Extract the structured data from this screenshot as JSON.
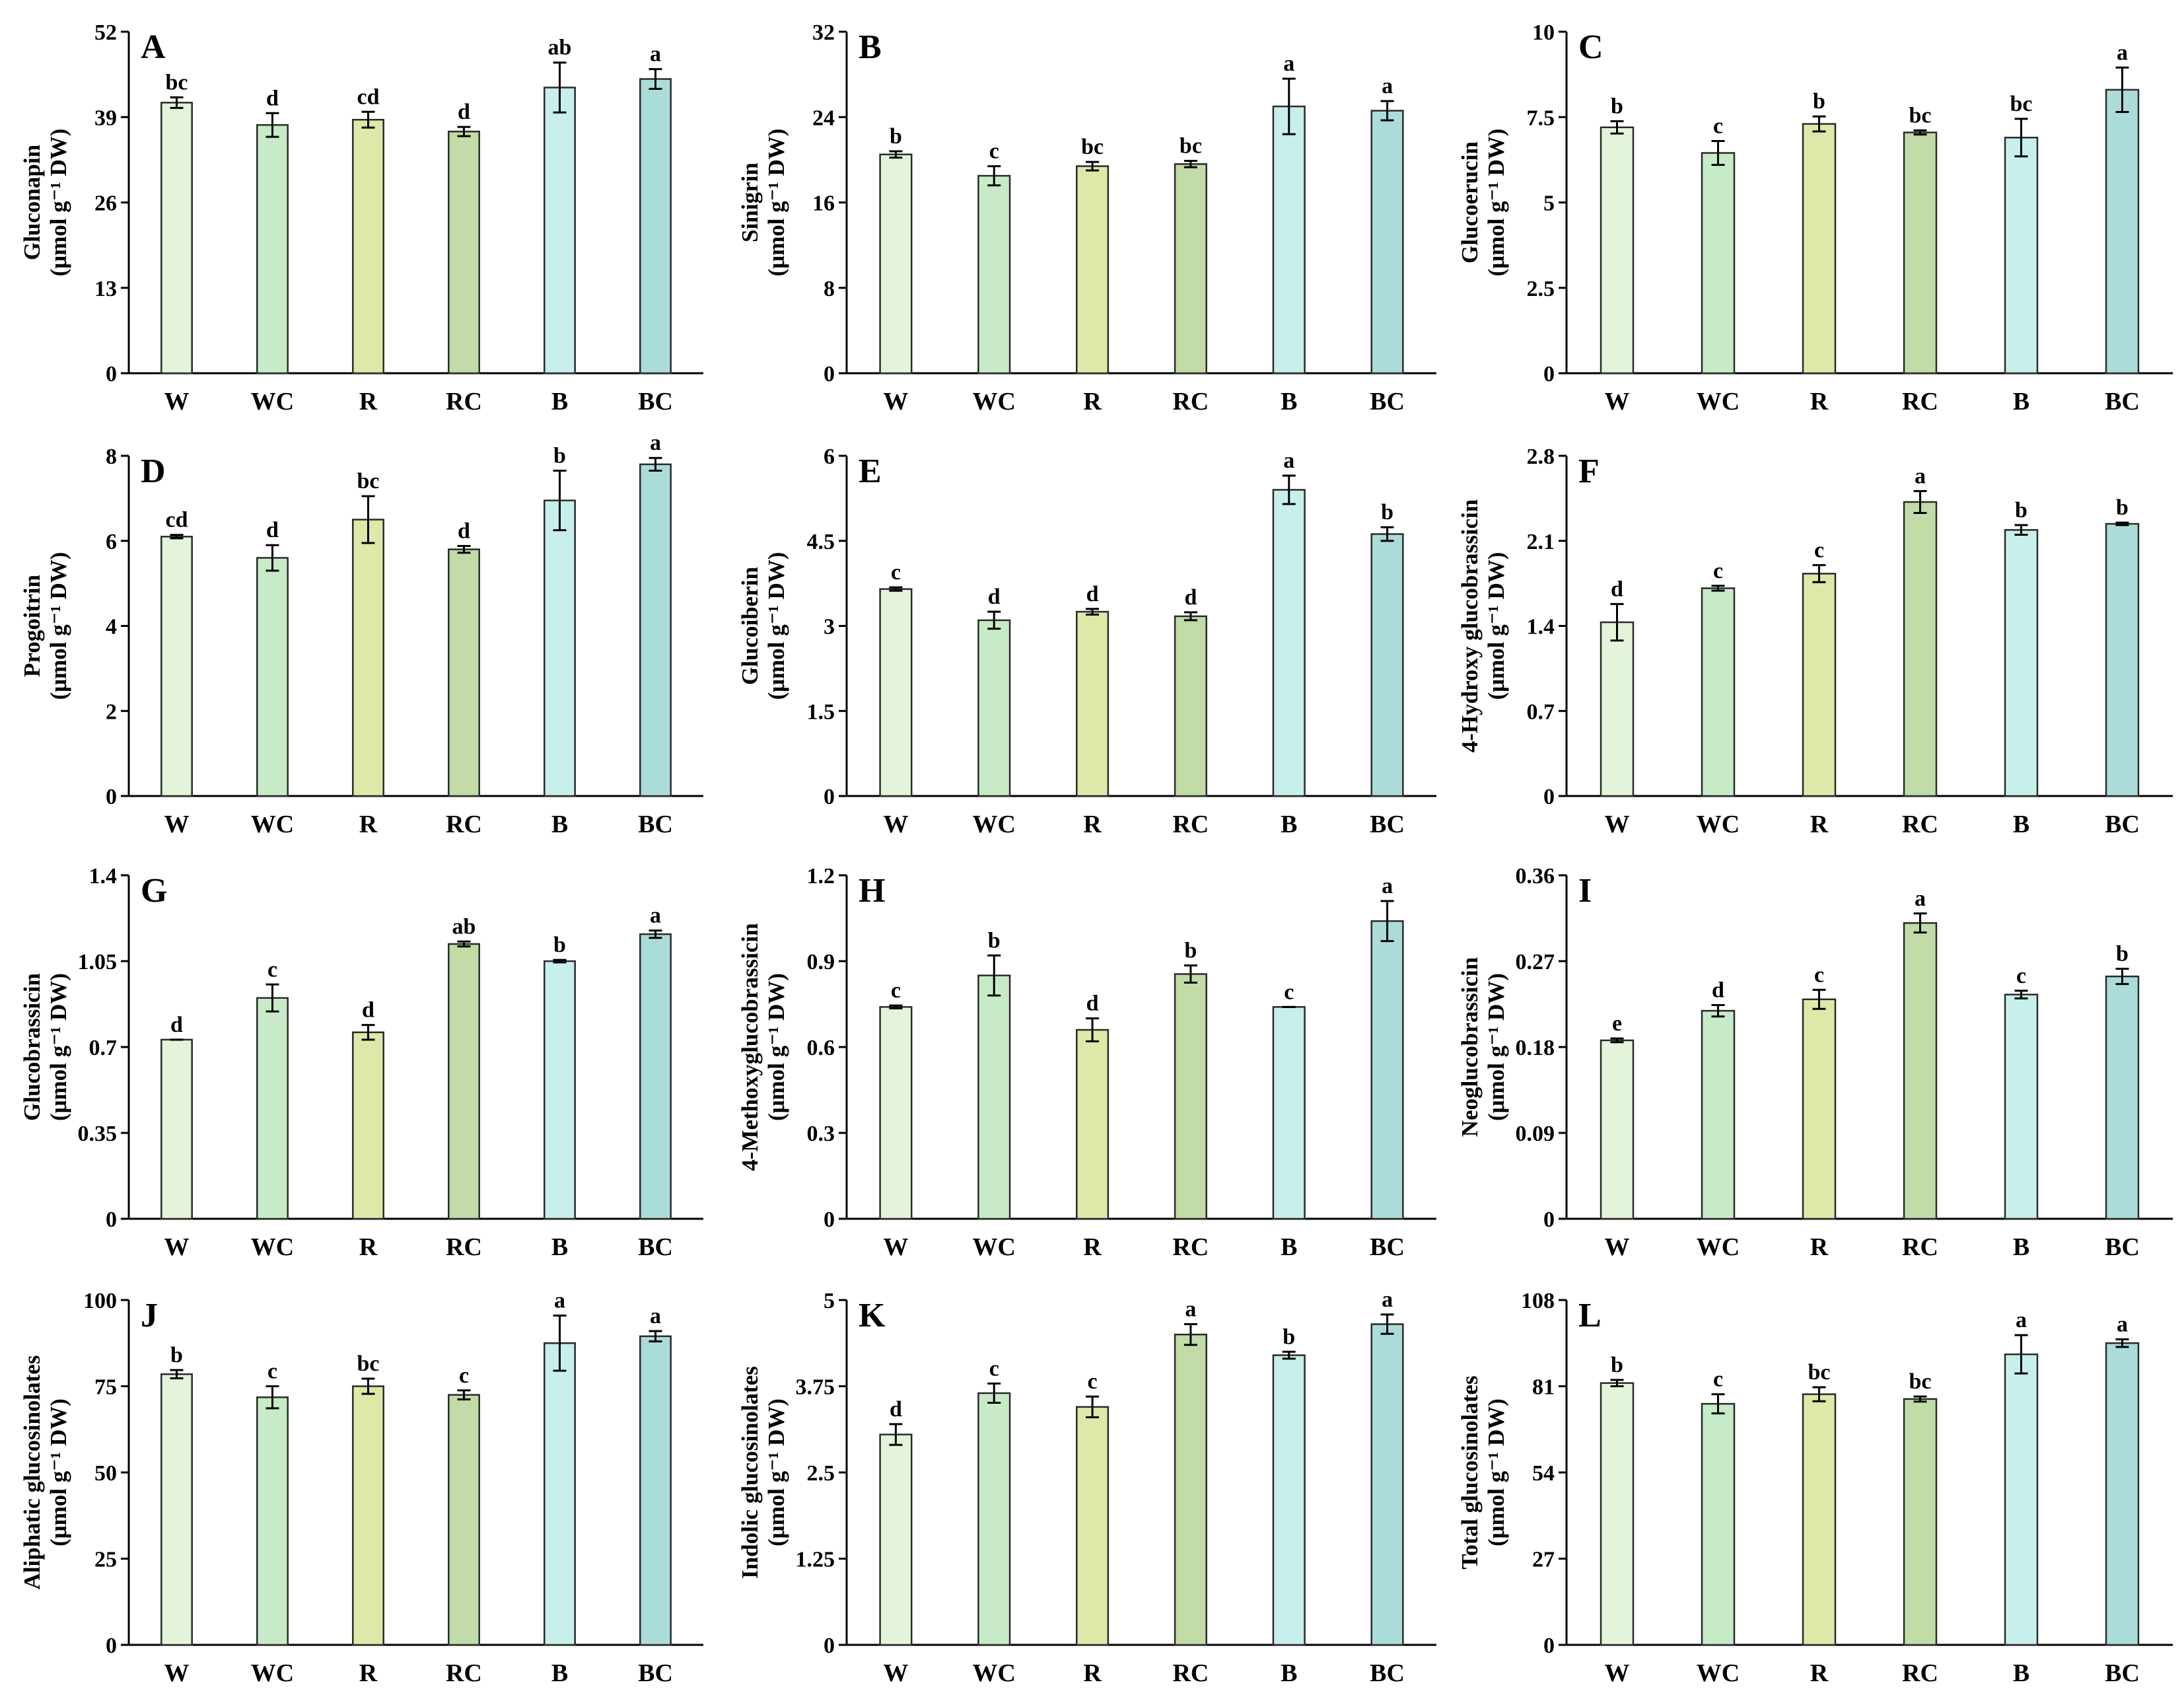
{
  "figure": {
    "categories": [
      "W",
      "WC",
      "R",
      "RC",
      "B",
      "BC"
    ],
    "bar_colors": [
      "#e3f4da",
      "#c7ebc6",
      "#dee8a8",
      "#c1dca6",
      "#c7efeb",
      "#acdcda"
    ]
  },
  "chart_data": [
    {
      "type": "bar",
      "panel": "A",
      "ylabel_line1": "Gluconapin",
      "ylabel_line2": "(μmol g⁻¹ DW)",
      "categories": [
        "W",
        "WC",
        "R",
        "RC",
        "B",
        "BC"
      ],
      "values": [
        41.2,
        37.8,
        38.6,
        36.8,
        43.5,
        44.8
      ],
      "errors": [
        0.8,
        1.8,
        1.2,
        0.7,
        3.8,
        1.5
      ],
      "letters": [
        "bc",
        "d",
        "cd",
        "d",
        "ab",
        "a"
      ],
      "ylim": [
        0,
        52
      ],
      "yticks": [
        "0",
        "13",
        "26",
        "39",
        "52"
      ]
    },
    {
      "type": "bar",
      "panel": "B",
      "ylabel_line1": "Sinigrin",
      "ylabel_line2": "(μmol g⁻¹ DW)",
      "categories": [
        "W",
        "WC",
        "R",
        "RC",
        "B",
        "BC"
      ],
      "values": [
        20.5,
        18.5,
        19.4,
        19.6,
        25.0,
        24.6
      ],
      "errors": [
        0.3,
        0.9,
        0.4,
        0.3,
        2.6,
        0.9
      ],
      "letters": [
        "b",
        "c",
        "bc",
        "bc",
        "a",
        "a"
      ],
      "ylim": [
        0,
        32
      ],
      "yticks": [
        "0",
        "8",
        "16",
        "24",
        "32"
      ]
    },
    {
      "type": "bar",
      "panel": "C",
      "ylabel_line1": "Glucoerucin",
      "ylabel_line2": "(μmol g⁻¹ DW)",
      "categories": [
        "W",
        "WC",
        "R",
        "RC",
        "B",
        "BC"
      ],
      "values": [
        7.2,
        6.45,
        7.3,
        7.05,
        6.9,
        8.3
      ],
      "errors": [
        0.18,
        0.35,
        0.22,
        0.06,
        0.55,
        0.65
      ],
      "letters": [
        "b",
        "c",
        "b",
        "bc",
        "bc",
        "a"
      ],
      "ylim": [
        0,
        10
      ],
      "yticks": [
        "0",
        "2.5",
        "5",
        "7.5",
        "10"
      ]
    },
    {
      "type": "bar",
      "panel": "D",
      "ylabel_line1": "Progoitrin",
      "ylabel_line2": "(μmol g⁻¹ DW)",
      "categories": [
        "W",
        "WC",
        "R",
        "RC",
        "B",
        "BC"
      ],
      "values": [
        6.1,
        5.6,
        6.5,
        5.8,
        6.95,
        7.8
      ],
      "errors": [
        0.04,
        0.3,
        0.55,
        0.08,
        0.7,
        0.15
      ],
      "letters": [
        "cd",
        "d",
        "bc",
        "d",
        "b",
        "a"
      ],
      "ylim": [
        0,
        8
      ],
      "yticks": [
        "0",
        "2",
        "4",
        "6",
        "8"
      ]
    },
    {
      "type": "bar",
      "panel": "E",
      "ylabel_line1": "Glucoiberin",
      "ylabel_line2": "(μmol g⁻¹ DW)",
      "categories": [
        "W",
        "WC",
        "R",
        "RC",
        "B",
        "BC"
      ],
      "values": [
        3.65,
        3.1,
        3.25,
        3.17,
        5.4,
        4.62
      ],
      "errors": [
        0.03,
        0.15,
        0.05,
        0.07,
        0.25,
        0.12
      ],
      "letters": [
        "c",
        "d",
        "d",
        "d",
        "a",
        "b"
      ],
      "ylim": [
        0,
        6
      ],
      "yticks": [
        "0",
        "1.5",
        "3",
        "4.5",
        "6"
      ]
    },
    {
      "type": "bar",
      "panel": "F",
      "ylabel_line1": "4-Hydroxy glucobrassicin",
      "ylabel_line2": "(μmol g⁻¹ DW)",
      "categories": [
        "W",
        "WC",
        "R",
        "RC",
        "B",
        "BC"
      ],
      "values": [
        1.43,
        1.71,
        1.83,
        2.42,
        2.19,
        2.24
      ],
      "errors": [
        0.15,
        0.02,
        0.07,
        0.09,
        0.04,
        0.01
      ],
      "letters": [
        "d",
        "c",
        "c",
        "a",
        "b",
        "b"
      ],
      "ylim": [
        0,
        2.8
      ],
      "yticks": [
        "0",
        "0.7",
        "1.4",
        "2.1",
        "2.8"
      ]
    },
    {
      "type": "bar",
      "panel": "G",
      "ylabel_line1": "Glucobrassicin",
      "ylabel_line2": "(μmol g⁻¹ DW)",
      "categories": [
        "W",
        "WC",
        "R",
        "RC",
        "B",
        "BC"
      ],
      "values": [
        0.73,
        0.9,
        0.76,
        1.12,
        1.05,
        1.16
      ],
      "errors": [
        0.0,
        0.055,
        0.03,
        0.01,
        0.005,
        0.015
      ],
      "letters": [
        "d",
        "c",
        "d",
        "ab",
        "b",
        "a"
      ],
      "ylim": [
        0,
        1.4
      ],
      "yticks": [
        "0",
        "0.35",
        "0.7",
        "1.05",
        "1.4"
      ]
    },
    {
      "type": "bar",
      "panel": "H",
      "ylabel_line1": "4-Methoxyglucobrassicin",
      "ylabel_line2": "(μmol g⁻¹ DW)",
      "categories": [
        "W",
        "WC",
        "R",
        "RC",
        "B",
        "BC"
      ],
      "values": [
        0.74,
        0.85,
        0.66,
        0.855,
        0.74,
        1.04
      ],
      "errors": [
        0.005,
        0.07,
        0.04,
        0.03,
        0.0,
        0.07
      ],
      "letters": [
        "c",
        "b",
        "d",
        "b",
        "c",
        "a"
      ],
      "ylim": [
        0,
        1.2
      ],
      "yticks": [
        "0",
        "0.3",
        "0.6",
        "0.9",
        "1.2"
      ]
    },
    {
      "type": "bar",
      "panel": "I",
      "ylabel_line1": "Neoglucobrassicin",
      "ylabel_line2": "(μmol g⁻¹ DW)",
      "categories": [
        "W",
        "WC",
        "R",
        "RC",
        "B",
        "BC"
      ],
      "values": [
        0.187,
        0.218,
        0.23,
        0.31,
        0.235,
        0.254
      ],
      "errors": [
        0.002,
        0.006,
        0.01,
        0.01,
        0.004,
        0.008
      ],
      "letters": [
        "e",
        "d",
        "c",
        "a",
        "c",
        "b"
      ],
      "ylim": [
        0,
        0.36
      ],
      "yticks": [
        "0",
        "0.09",
        "0.18",
        "0.27",
        "0.36"
      ]
    },
    {
      "type": "bar",
      "panel": "J",
      "ylabel_line1": "Aliphatic glucosinolates",
      "ylabel_line2": "(μmol g⁻¹ DW)",
      "categories": [
        "W",
        "WC",
        "R",
        "RC",
        "B",
        "BC"
      ],
      "values": [
        78.5,
        71.8,
        75.0,
        72.5,
        87.5,
        89.5
      ],
      "errors": [
        1.2,
        3.2,
        2.2,
        1.3,
        8.0,
        1.5
      ],
      "letters": [
        "b",
        "c",
        "bc",
        "c",
        "a",
        "a"
      ],
      "ylim": [
        0,
        100
      ],
      "yticks": [
        "0",
        "25",
        "50",
        "75",
        "100"
      ]
    },
    {
      "type": "bar",
      "panel": "K",
      "ylabel_line1": "Indolic glucosinolates",
      "ylabel_line2": "(μmol g⁻¹ DW)",
      "categories": [
        "W",
        "WC",
        "R",
        "RC",
        "B",
        "BC"
      ],
      "values": [
        3.05,
        3.65,
        3.45,
        4.5,
        4.2,
        4.65
      ],
      "errors": [
        0.15,
        0.14,
        0.15,
        0.15,
        0.05,
        0.14
      ],
      "letters": [
        "d",
        "c",
        "c",
        "a",
        "b",
        "a"
      ],
      "ylim": [
        0,
        5
      ],
      "yticks": [
        "0",
        "1.25",
        "2.5",
        "3.75",
        "5"
      ]
    },
    {
      "type": "bar",
      "panel": "L",
      "ylabel_line1": "Total glucosinolates",
      "ylabel_line2": "(μmol g⁻¹ DW)",
      "categories": [
        "W",
        "WC",
        "R",
        "RC",
        "B",
        "BC"
      ],
      "values": [
        82.0,
        75.5,
        78.5,
        77.0,
        91.0,
        94.5
      ],
      "errors": [
        1.0,
        3.0,
        2.2,
        0.8,
        6.0,
        1.2
      ],
      "letters": [
        "b",
        "c",
        "bc",
        "bc",
        "a",
        "a"
      ],
      "ylim": [
        0,
        108
      ],
      "yticks": [
        "0",
        "27",
        "54",
        "81",
        "108"
      ]
    }
  ]
}
